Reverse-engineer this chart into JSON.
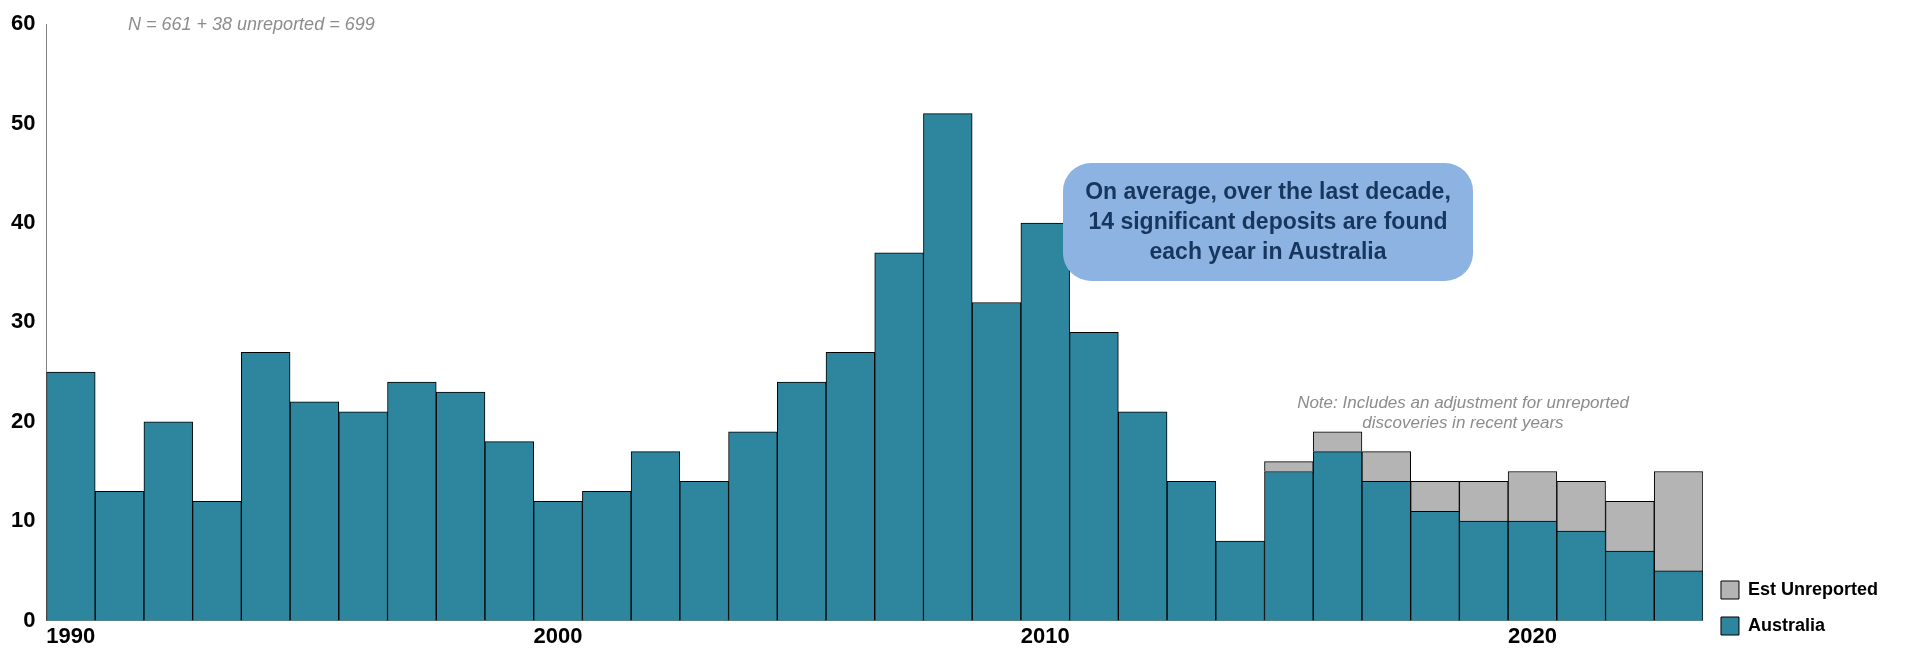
{
  "chart_data": {
    "type": "bar",
    "stacked": true,
    "categories": [
      "1990",
      null,
      null,
      null,
      null,
      null,
      null,
      null,
      null,
      null,
      "2000",
      null,
      null,
      null,
      null,
      null,
      null,
      null,
      null,
      null,
      "2010",
      null,
      null,
      null,
      null,
      null,
      null,
      null,
      null,
      null,
      "2020",
      null,
      null,
      null
    ],
    "series": [
      {
        "name": "Australia",
        "color": "#2e859e",
        "values": [
          25,
          13,
          20,
          12,
          27,
          22,
          21,
          24,
          23,
          18,
          12,
          13,
          17,
          14,
          19,
          24,
          27,
          37,
          51,
          32,
          40,
          29,
          21,
          14,
          8,
          15,
          17,
          14,
          11,
          10,
          10,
          9,
          7,
          5
        ]
      },
      {
        "name": "Est Unreported",
        "color": "#b4b4b4",
        "values": [
          null,
          null,
          null,
          null,
          null,
          null,
          null,
          null,
          null,
          null,
          null,
          null,
          null,
          null,
          null,
          null,
          null,
          null,
          null,
          null,
          null,
          null,
          null,
          null,
          null,
          1,
          2,
          3,
          3,
          4,
          5,
          5,
          5,
          10
        ]
      }
    ],
    "ylim": [
      0,
      60
    ],
    "yticks": [
      0,
      10,
      20,
      30,
      40,
      50,
      60
    ],
    "grid": false,
    "legend": "right",
    "annotations": [
      "N = 661 + 38 unreported = 699",
      "On average, over the last decade, 14 significant deposits are found each year in Australia",
      "Note: Includes an adjustment for unreported discoveries in recent years"
    ]
  }
}
